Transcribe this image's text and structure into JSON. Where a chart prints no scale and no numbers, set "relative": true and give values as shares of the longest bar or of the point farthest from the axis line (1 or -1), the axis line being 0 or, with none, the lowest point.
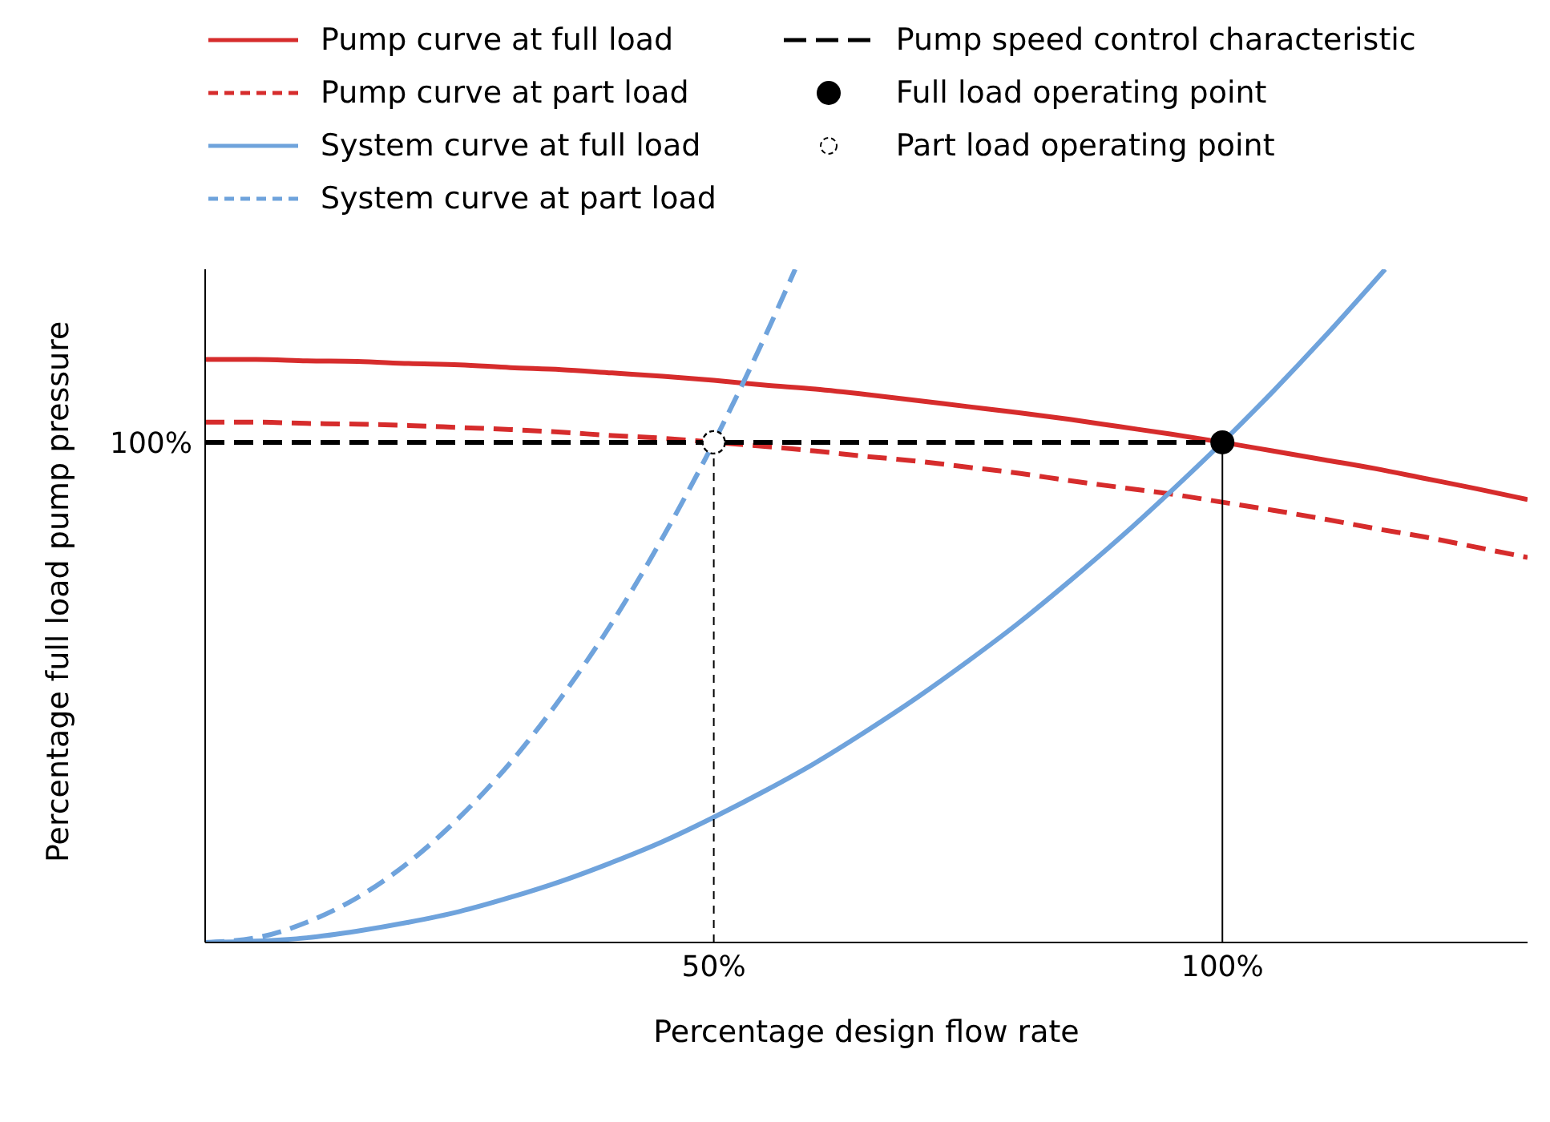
{
  "chart_data": {
    "type": "line",
    "relative": true,
    "xlabel": "Percentage design flow rate",
    "ylabel": "Percentage full load pump pressure",
    "annotations": [
      "100%"
    ],
    "xlim": [
      0,
      130
    ],
    "xticks": [
      {
        "value": 50,
        "label": "50%"
      },
      {
        "value": 100,
        "label": "100%"
      }
    ],
    "legend": "top",
    "marker": "none",
    "series": [
      {
        "name": "Pump curve at full load",
        "color": "#d62c2c",
        "line_style": "solid",
        "x": [
          0,
          5,
          10,
          15,
          20,
          25,
          30,
          35,
          40,
          45,
          50,
          55,
          60,
          65,
          70,
          75,
          80,
          85,
          90,
          95,
          100,
          105,
          110,
          115,
          120,
          125,
          130
        ],
        "values": [
          0.866,
          0.866,
          0.864,
          0.863,
          0.86,
          0.858,
          0.854,
          0.851,
          0.846,
          0.841,
          0.835,
          0.828,
          0.822,
          0.814,
          0.805,
          0.796,
          0.787,
          0.777,
          0.766,
          0.755,
          0.743,
          0.73,
          0.717,
          0.704,
          0.689,
          0.674,
          0.658
        ]
      },
      {
        "name": "Pump curve at part load",
        "color": "#d62c2c",
        "line_style": "dashed",
        "x": [
          0,
          5,
          10,
          15,
          20,
          25,
          30,
          35,
          40,
          45,
          50,
          55,
          60,
          65,
          70,
          75,
          80,
          85,
          90,
          95,
          100,
          105,
          110,
          115,
          120,
          125,
          130
        ],
        "values": [
          0.773,
          0.773,
          0.771,
          0.77,
          0.768,
          0.765,
          0.762,
          0.758,
          0.753,
          0.749,
          0.743,
          0.737,
          0.73,
          0.722,
          0.715,
          0.706,
          0.697,
          0.686,
          0.676,
          0.666,
          0.654,
          0.642,
          0.629,
          0.615,
          0.602,
          0.587,
          0.572
        ]
      },
      {
        "name": "System curve at full load",
        "color": "#6fa3dc",
        "line_style": "solid",
        "x": [
          0,
          5,
          10,
          15,
          20,
          25,
          30,
          35,
          40,
          45,
          50,
          55,
          60,
          65,
          70,
          75,
          80,
          85,
          90,
          95,
          100,
          105,
          110,
          115,
          116
        ],
        "values": [
          0,
          0.002,
          0.007,
          0.017,
          0.03,
          0.046,
          0.067,
          0.091,
          0.119,
          0.15,
          0.186,
          0.225,
          0.267,
          0.314,
          0.364,
          0.418,
          0.475,
          0.537,
          0.602,
          0.671,
          0.743,
          0.819,
          0.899,
          0.983,
          1.0
        ]
      },
      {
        "name": "System curve at part load",
        "color": "#6fa3dc",
        "line_style": "dashed",
        "x": [
          0,
          5,
          10,
          15,
          20,
          25,
          30,
          35,
          40,
          45,
          50,
          55,
          58
        ],
        "values": [
          0,
          0.007,
          0.03,
          0.067,
          0.119,
          0.186,
          0.267,
          0.364,
          0.475,
          0.602,
          0.743,
          0.899,
          1.0
        ]
      },
      {
        "name": "Pump speed control characteristic",
        "color": "#000000",
        "line_style": "dashed",
        "x": [
          0,
          100
        ],
        "values": [
          0.743,
          0.743
        ]
      },
      {
        "name": "Full load operating point",
        "type": "scatter",
        "color": "#000000",
        "marker": "circle",
        "line_style": "solid",
        "x": [
          100
        ],
        "values": [
          0.743
        ]
      },
      {
        "name": "Part load operating point",
        "type": "scatter",
        "color": "#000000",
        "marker": "circle",
        "line_style": "dashed",
        "x": [
          50
        ],
        "values": [
          0.743
        ]
      },
      {
        "color": "#000000",
        "line_style": "dashed",
        "x": [
          50,
          50
        ],
        "values": [
          0,
          0.743
        ]
      },
      {
        "color": "#000000",
        "line_style": "solid",
        "x": [
          100,
          100
        ],
        "values": [
          0,
          0.743
        ]
      }
    ]
  }
}
